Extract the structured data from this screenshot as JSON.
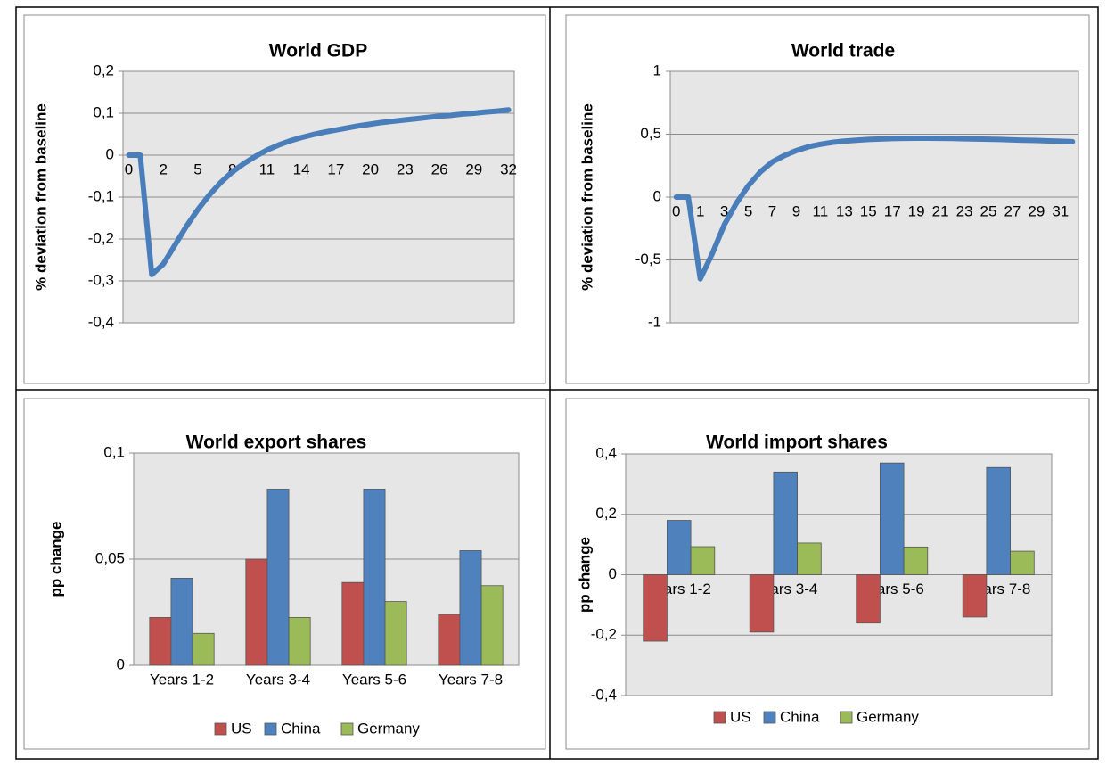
{
  "chart_data": [
    {
      "type": "line",
      "title": "World GDP",
      "y_label": "% deviation from baseline",
      "color": "#4a7ebb",
      "categories": [
        "0",
        null,
        null,
        "2",
        null,
        null,
        "5",
        null,
        null,
        "8",
        null,
        null,
        "11",
        null,
        null,
        "14",
        null,
        null,
        "17",
        null,
        null,
        "20",
        null,
        null,
        "23",
        null,
        null,
        "26",
        null,
        null,
        "29",
        null,
        null,
        "32"
      ],
      "values": [
        0,
        0,
        -0.285,
        -0.26,
        -0.215,
        -0.17,
        -0.13,
        -0.095,
        -0.065,
        -0.04,
        -0.02,
        -0.003,
        0.012,
        0.024,
        0.034,
        0.042,
        0.049,
        0.055,
        0.06,
        0.065,
        0.07,
        0.074,
        0.078,
        0.081,
        0.084,
        0.087,
        0.09,
        0.093,
        0.095,
        0.098,
        0.1,
        0.103,
        0.105,
        0.108
      ],
      "ylim": [
        -0.4,
        0.2
      ],
      "yticks": [
        {
          "value": 0.2,
          "label": "0,2"
        },
        {
          "value": 0.1,
          "label": "0,1"
        },
        0,
        {
          "value": -0.1,
          "label": "-0,1"
        },
        {
          "value": -0.2,
          "label": "-0,2"
        },
        {
          "value": -0.3,
          "label": "-0,3"
        },
        {
          "value": -0.4,
          "label": "-0,4"
        }
      ],
      "grid": true
    },
    {
      "type": "line",
      "title": "World trade",
      "y_label": "% deviation from baseline",
      "color": "#4a7ebb",
      "categories": [
        "0",
        null,
        "1",
        null,
        "3",
        null,
        "5",
        null,
        "7",
        null,
        "9",
        null,
        "11",
        null,
        "13",
        null,
        "15",
        null,
        "17",
        null,
        "19",
        null,
        "21",
        null,
        "23",
        null,
        "25",
        null,
        "27",
        null,
        "29",
        null,
        "31",
        null
      ],
      "values": [
        0,
        0,
        -0.65,
        -0.45,
        -0.22,
        -0.05,
        0.09,
        0.2,
        0.28,
        0.33,
        0.37,
        0.4,
        0.42,
        0.435,
        0.445,
        0.452,
        0.458,
        0.462,
        0.465,
        0.467,
        0.468,
        0.468,
        0.467,
        0.466,
        0.464,
        0.462,
        0.46,
        0.458,
        0.455,
        0.452,
        0.45,
        0.447,
        0.444,
        0.441
      ],
      "ylim": [
        -1,
        1
      ],
      "yticks": [
        1,
        {
          "value": 0.5,
          "label": "0,5"
        },
        0,
        {
          "value": -0.5,
          "label": "-0,5"
        },
        -1
      ],
      "grid": true
    },
    {
      "type": "bar",
      "title": "World export shares",
      "y_label": "pp change",
      "categories": [
        "Years 1-2",
        "Years 3-4",
        "Years 5-6",
        "Years 7-8"
      ],
      "series": [
        {
          "name": "US",
          "color": "#c0504d",
          "values": [
            0.0225,
            0.05,
            0.039,
            0.024
          ]
        },
        {
          "name": "China",
          "color": "#4f81bd",
          "values": [
            0.041,
            0.083,
            0.083,
            0.054
          ]
        },
        {
          "name": "Germany",
          "color": "#9bbb59",
          "values": [
            0.015,
            0.0225,
            0.03,
            0.0375
          ]
        }
      ],
      "ylim": [
        0,
        0.1
      ],
      "yticks": [
        {
          "value": 0.1,
          "label": "0,1"
        },
        {
          "value": 0.05,
          "label": "0,05"
        },
        0
      ],
      "grid": true
    },
    {
      "type": "bar",
      "title": "World import shares",
      "y_label": "pp change",
      "categories": [
        "Years 1-2",
        "Years 3-4",
        "Years 5-6",
        "Years 7-8"
      ],
      "series": [
        {
          "name": "US",
          "color": "#c0504d",
          "values": [
            -0.22,
            -0.19,
            -0.16,
            -0.14
          ]
        },
        {
          "name": "China",
          "color": "#4f81bd",
          "values": [
            0.18,
            0.34,
            0.37,
            0.355
          ]
        },
        {
          "name": "Germany",
          "color": "#9bbb59",
          "values": [
            0.093,
            0.105,
            0.092,
            0.078
          ]
        }
      ],
      "ylim": [
        -0.4,
        0.4
      ],
      "yticks": [
        {
          "value": 0.4,
          "label": "0,4"
        },
        {
          "value": 0.2,
          "label": "0,2"
        },
        0,
        {
          "value": -0.2,
          "label": "-0,2"
        },
        {
          "value": -0.4,
          "label": "-0,4"
        }
      ],
      "grid": true
    }
  ]
}
